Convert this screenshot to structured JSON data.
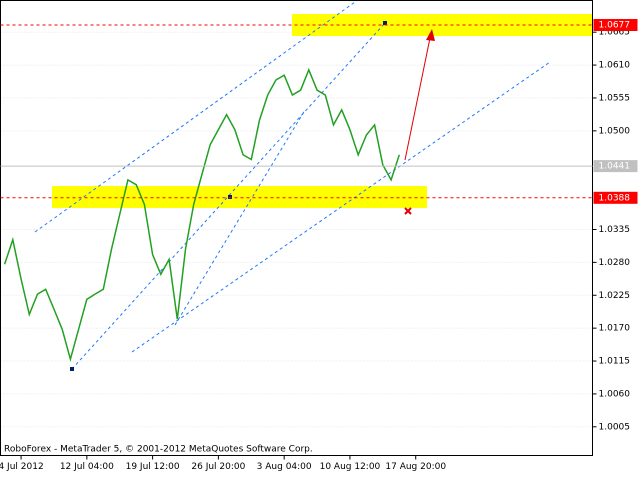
{
  "chart_data": {
    "type": "line",
    "annotation": "RoboForex - MetaTrader 5, © 2001-2012 MetaQuotes Software Corp.",
    "categories": [
      null,
      null,
      "4 Jul 2012",
      null,
      null,
      null,
      null,
      null,
      null,
      null,
      "12 Jul 04:00",
      null,
      null,
      null,
      null,
      null,
      null,
      null,
      "19 Jul 12:00",
      null,
      null,
      null,
      null,
      null,
      null,
      null,
      "26 Jul 20:00",
      null,
      null,
      null,
      null,
      null,
      null,
      null,
      "3 Aug 04:00",
      null,
      null,
      null,
      null,
      null,
      null,
      null,
      "10 Aug 12:00",
      null,
      null,
      null,
      null,
      null,
      null,
      null,
      "17 Aug 20:00",
      null,
      null,
      null,
      null,
      null,
      null,
      null,
      null,
      null,
      null,
      null,
      null,
      null,
      null,
      null,
      null,
      null,
      null,
      null,
      null,
      null
    ],
    "values": [
      1.0277,
      1.0318,
      1.0252,
      1.0193,
      1.0227,
      1.0235,
      1.0202,
      1.0168,
      1.0118,
      1.0168,
      1.0218,
      1.0227,
      1.0235,
      1.0302,
      1.036,
      1.0418,
      1.041,
      1.0377,
      1.0293,
      1.026,
      1.0285,
      1.0185,
      1.0302,
      1.0377,
      1.0427,
      1.0477,
      1.0502,
      1.0527,
      1.0502,
      1.046,
      1.0452,
      1.0518,
      1.056,
      1.0585,
      1.0593,
      1.056,
      1.0568,
      1.0602,
      1.0568,
      1.056,
      1.051,
      1.0535,
      1.0502,
      1.046,
      1.0493,
      1.051,
      1.0443,
      1.0418,
      1.046,
      null,
      null,
      null,
      null,
      null,
      null,
      null,
      null,
      null,
      null,
      null,
      null,
      null,
      null,
      null,
      null,
      null,
      null,
      null,
      null,
      null,
      null,
      null
    ],
    "color": "#22a022",
    "levels": [
      1.0677,
      1.0388
    ],
    "level_color": "#ff0000",
    "current_price": 1.0441,
    "ylim": [
      0.9957,
      1.0718
    ],
    "yticks": [
      1.0005,
      {
        "value": 1.006,
        "label": "1.0060"
      },
      1.0115,
      {
        "value": 1.017,
        "label": "1.0170"
      },
      1.0225,
      {
        "value": 1.028,
        "label": "1.0280"
      },
      1.0335,
      {
        "value": 1.05,
        "label": "1.0500"
      },
      1.0555,
      {
        "value": 1.061,
        "label": "1.0610"
      },
      1.0665
    ],
    "grid": true
  }
}
